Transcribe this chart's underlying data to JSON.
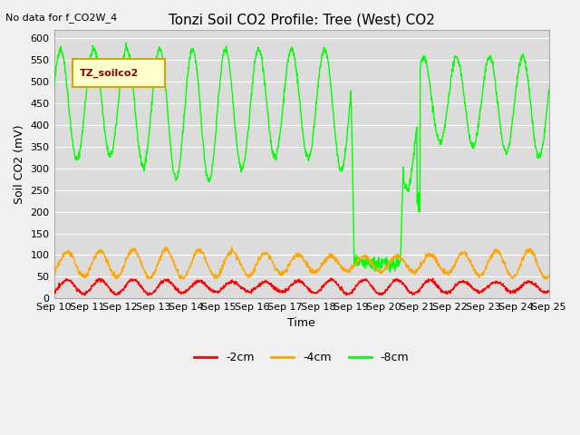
{
  "title": "Tonzi Soil CO2 Profile: Tree (West) CO2",
  "no_data_text": "No data for f_CO2W_4",
  "ylabel": "Soil CO2 (mV)",
  "xlabel": "Time",
  "legend_box_label": "TZ_soilco2",
  "ylim": [
    0,
    620
  ],
  "yticks": [
    0,
    50,
    100,
    150,
    200,
    250,
    300,
    350,
    400,
    450,
    500,
    550,
    600
  ],
  "xtick_labels": [
    "Sep 10",
    "Sep 11",
    "Sep 12",
    "Sep 13",
    "Sep 14",
    "Sep 15",
    "Sep 16",
    "Sep 17",
    "Sep 18",
    "Sep 19",
    "Sep 20",
    "Sep 21",
    "Sep 22",
    "Sep 23",
    "Sep 24",
    "Sep 25"
  ],
  "color_2cm": "#ff0000",
  "color_4cm": "#ffa500",
  "color_8cm": "#00ff00",
  "plot_bg": "#dcdcdc",
  "fig_bg": "#f0f0f0",
  "legend_entries": [
    "-2cm",
    "-4cm",
    "-8cm"
  ],
  "linewidth": 1.0,
  "title_fontsize": 11,
  "label_fontsize": 9,
  "tick_fontsize": 8
}
